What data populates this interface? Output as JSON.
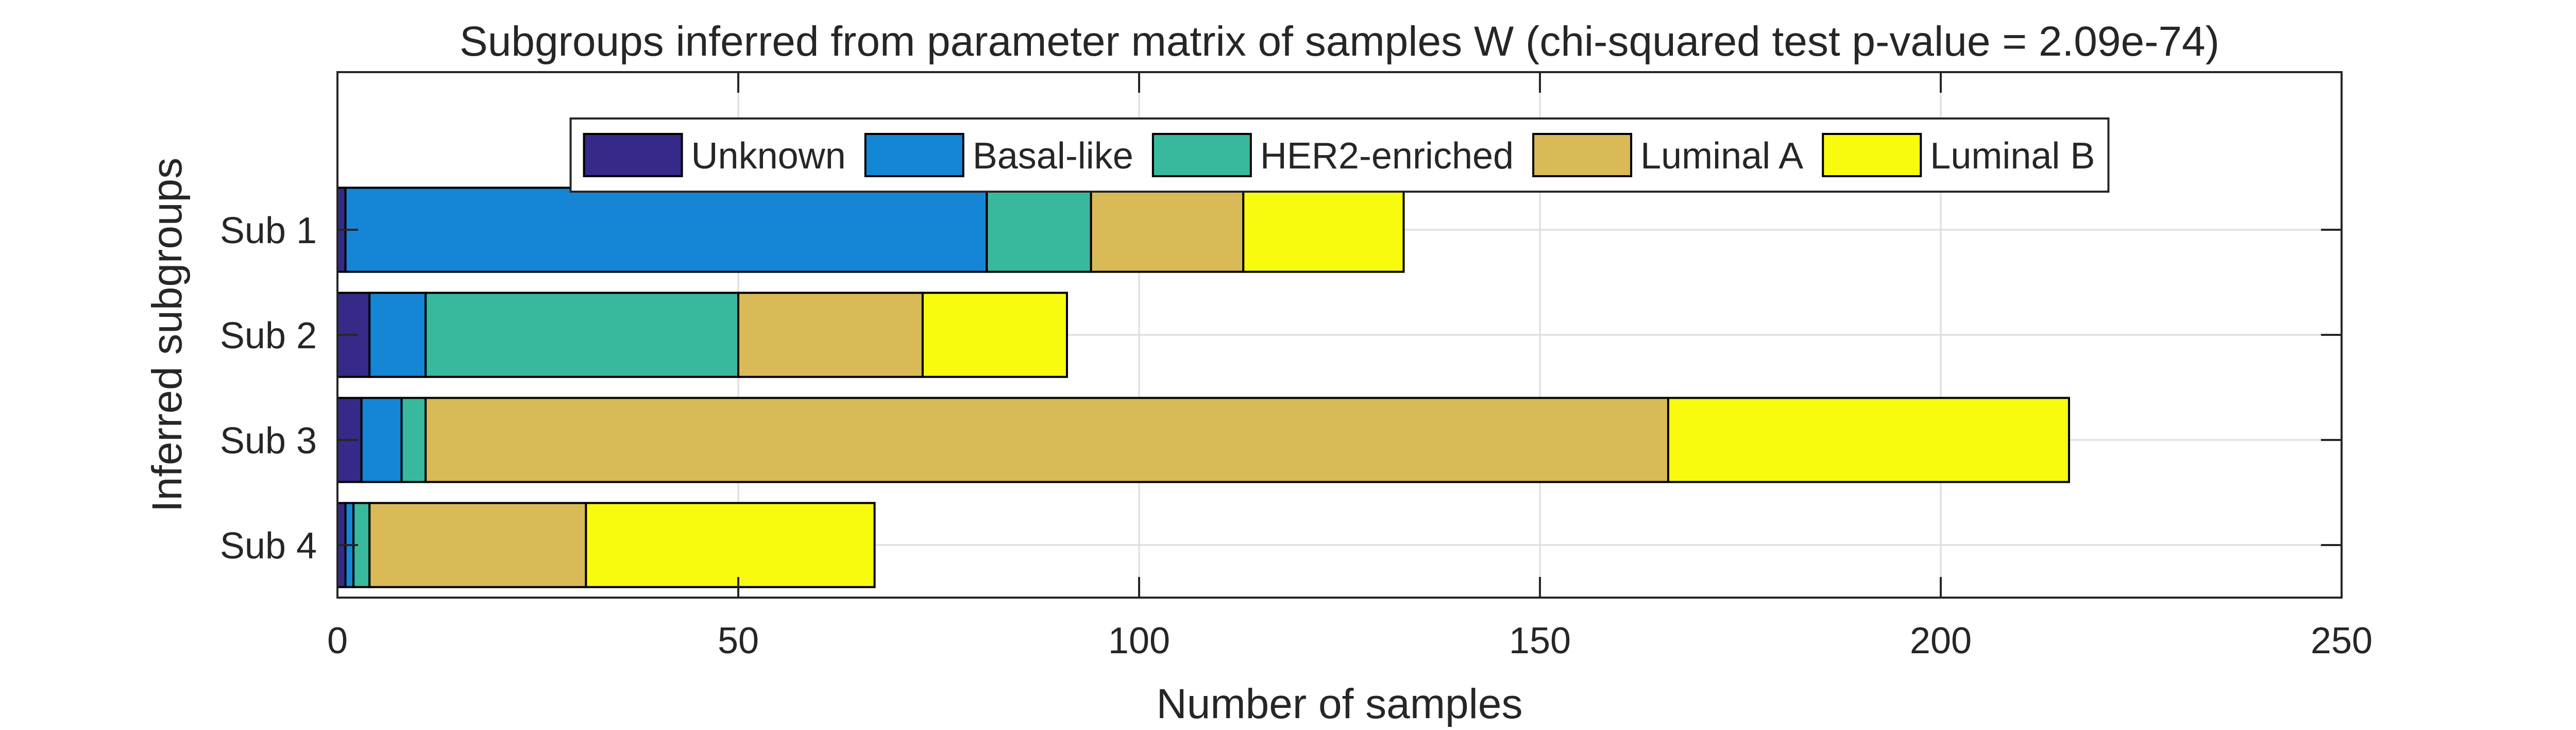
{
  "chart_data": {
    "type": "bar",
    "orientation": "horizontal",
    "stacked": true,
    "title": "Subgroups inferred from parameter matrix of samples W (chi-squared test p-value = 2.09e-74)",
    "xlabel": "Number of samples",
    "ylabel": "Inferred subgroups",
    "xlim": [
      0,
      250
    ],
    "xticks": [
      0,
      50,
      100,
      150,
      200,
      250
    ],
    "grid": true,
    "legend_position": "top-center",
    "categories": [
      "Sub 1",
      "Sub 2",
      "Sub 3",
      "Sub 4"
    ],
    "series": [
      {
        "name": "Unknown",
        "color": "#352A87",
        "values": [
          1,
          4,
          3,
          1
        ]
      },
      {
        "name": "Basal-like",
        "color": "#1585D6",
        "values": [
          80,
          7,
          5,
          1
        ]
      },
      {
        "name": "HER2-enriched",
        "color": "#38B99E",
        "values": [
          13,
          39,
          3,
          2
        ]
      },
      {
        "name": "Luminal A",
        "color": "#D9BA56",
        "values": [
          19,
          23,
          155,
          27
        ]
      },
      {
        "name": "Luminal B",
        "color": "#F9FB0E",
        "values": [
          20,
          18,
          50,
          36
        ]
      }
    ]
  }
}
